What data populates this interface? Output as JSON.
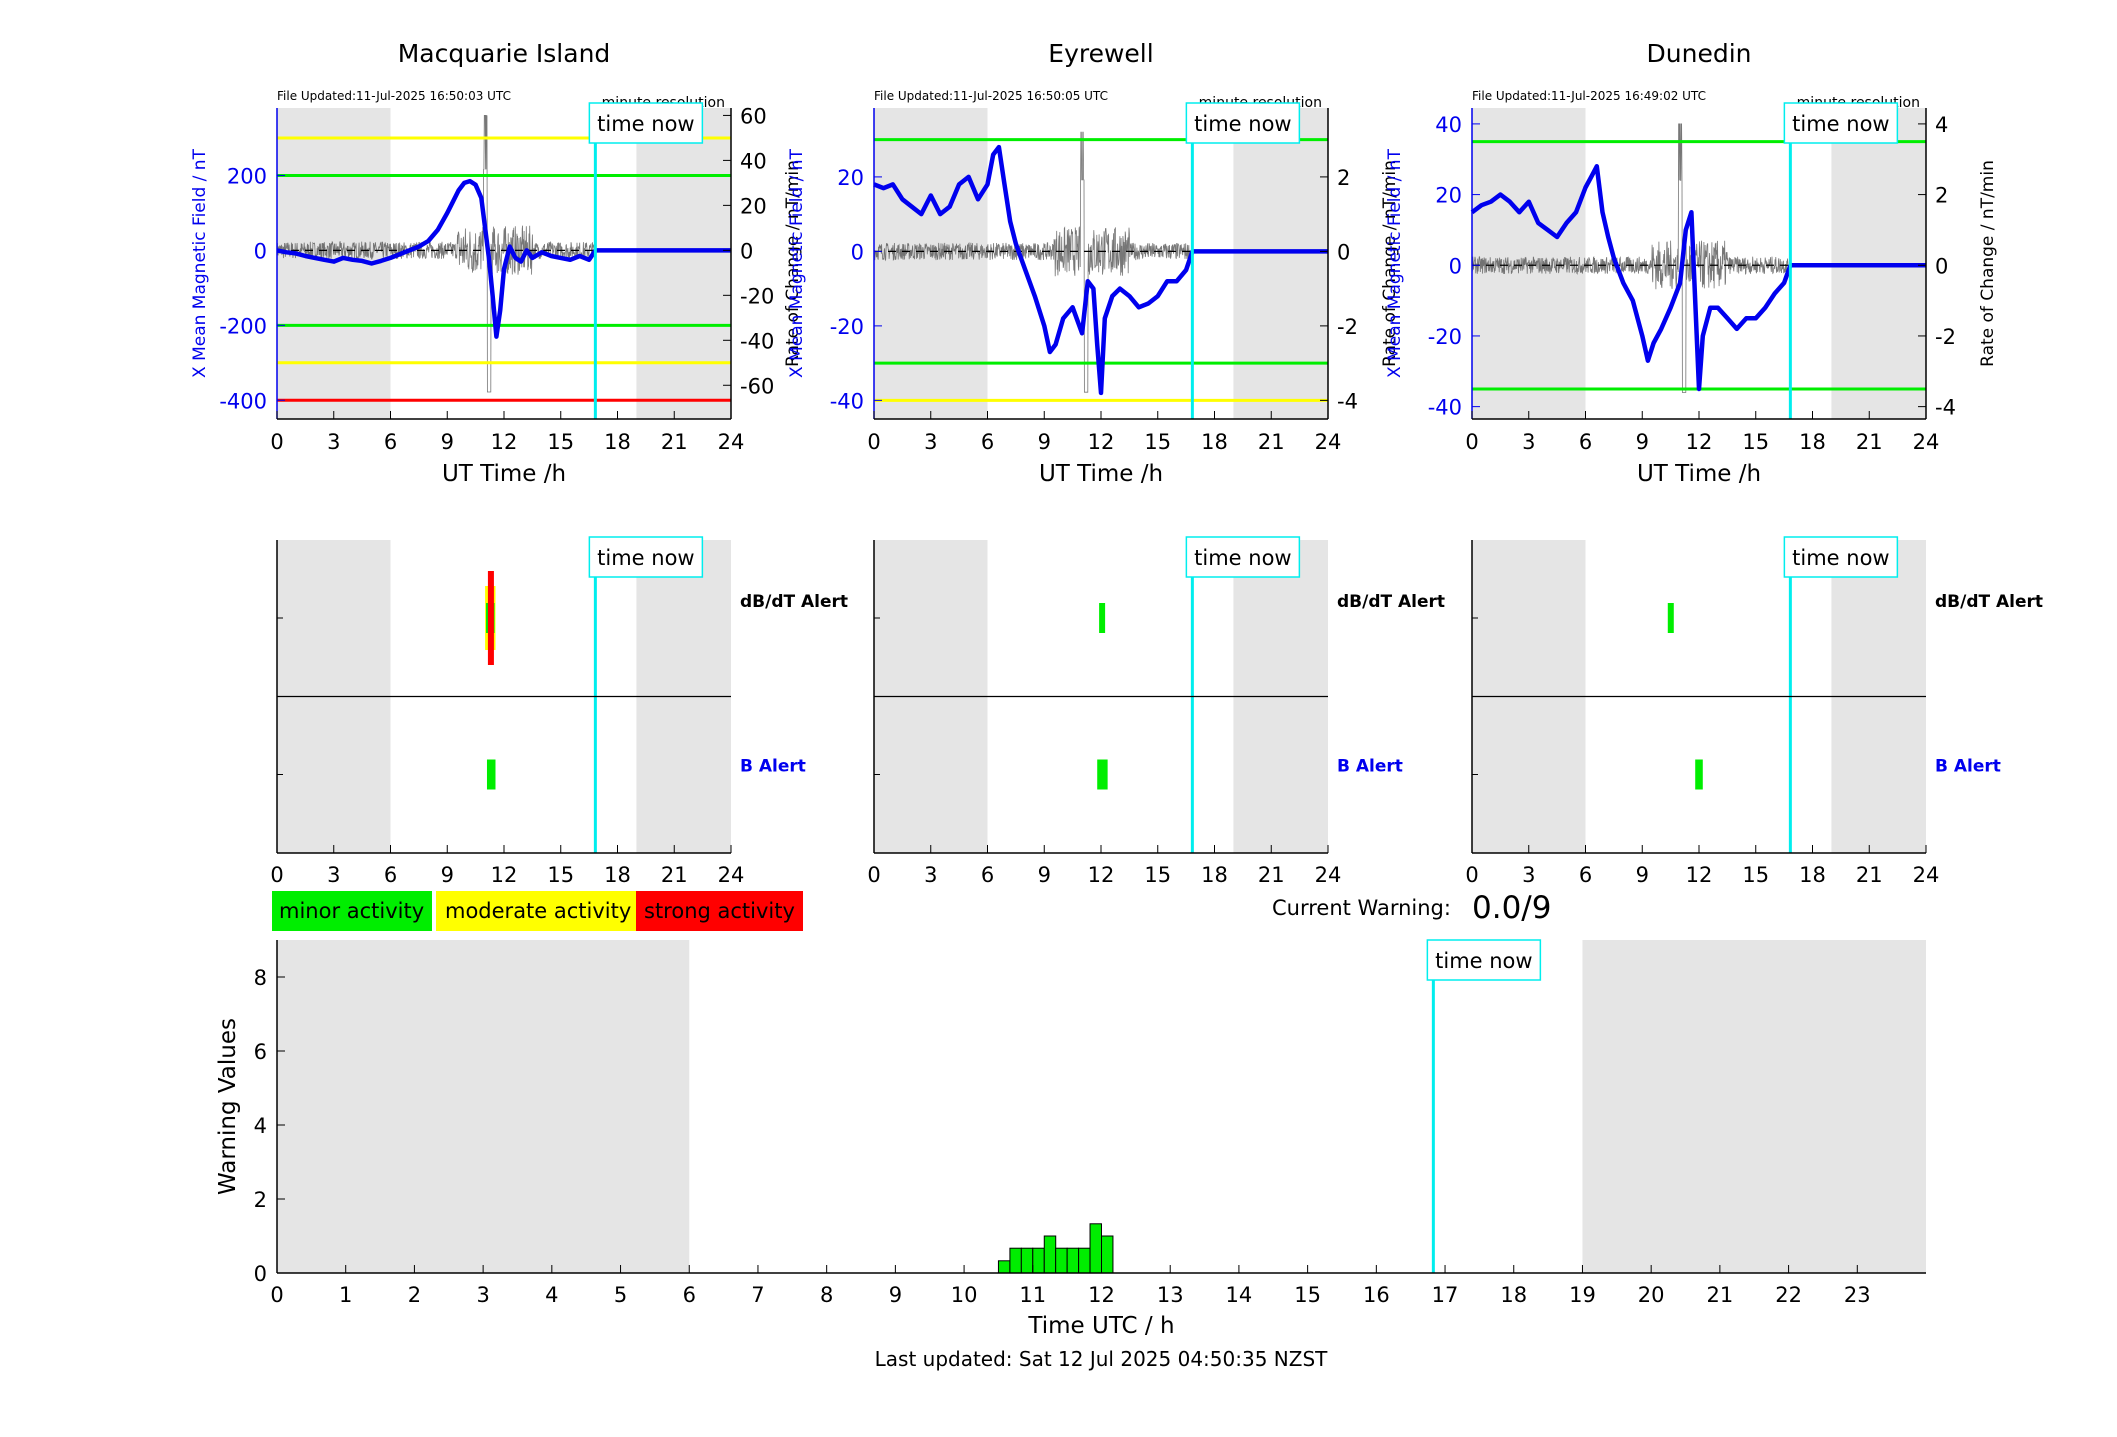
{
  "meta": {
    "last_updated_text": "Last updated: Sat 12 Jul 2025 04:50:35 NZST",
    "current_warning_label": "Current Warning:",
    "current_warning_value": "0.0/9",
    "time_now_label": "time now",
    "minute_resolution_label": "minute resolution",
    "dbdt_alert_label": "dB/dT Alert",
    "b_alert_label": "B Alert",
    "legend": [
      {
        "label": "minor activity",
        "color": "#00ee00"
      },
      {
        "label": "moderate activity",
        "color": "#ffff00"
      },
      {
        "label": "strong activity",
        "color": "#ff0000"
      }
    ],
    "colors": {
      "field_line": "#0000ee",
      "rate_line": "#555555",
      "time_now": "#00eeee",
      "night_shade": "#e5e5e5",
      "green": "#00ee00",
      "yellow": "#ffff00",
      "red": "#ff0000",
      "b_alert_label": "#0000ee"
    }
  },
  "chart_data": [
    {
      "type": "line",
      "title": "Macquarie Island",
      "file_updated": "File Updated:11-Jul-2025 16:50:03 UTC",
      "xlabel": "UT Time /h",
      "ylabel": "X Mean Magnetic Field / nT",
      "ylabel_right": "Rate of Change / nT/min",
      "xlim": [
        0,
        24
      ],
      "xticks": [
        "0",
        "3",
        "6",
        "9",
        "12",
        "15",
        "18",
        "21",
        "24"
      ],
      "ylim": [
        -450,
        380
      ],
      "yticks": [
        "-400",
        "-200",
        "0",
        "200"
      ],
      "ylim_right": [
        -75,
        63.3
      ],
      "yticks_right": [
        "-60",
        "-40",
        "-20",
        "0",
        "20",
        "40",
        "60"
      ],
      "night_shade": [
        [
          0,
          6
        ],
        [
          19,
          24
        ]
      ],
      "time_now": 16.83,
      "thresholds": [
        {
          "value": 300,
          "color": "yellow"
        },
        {
          "value": 200,
          "color": "green"
        },
        {
          "value": -200,
          "color": "green"
        },
        {
          "value": -300,
          "color": "yellow"
        },
        {
          "value": -400,
          "color": "red"
        }
      ],
      "series": [
        {
          "x": [
            0,
            0.5,
            1,
            1.5,
            2,
            2.5,
            3,
            3.5,
            4,
            4.5,
            5,
            5.5,
            6,
            6.5,
            7,
            7.5,
            8,
            8.5,
            9,
            9.3,
            9.6,
            9.9,
            10.2,
            10.5,
            10.8,
            11.0,
            11.2,
            11.4,
            11.6,
            11.8,
            12.0,
            12.3,
            12.6,
            12.9,
            13.2,
            13.5,
            14,
            14.5,
            15,
            15.5,
            16,
            16.5,
            16.83
          ],
          "values": [
            0,
            -5,
            -8,
            -15,
            -20,
            -25,
            -30,
            -20,
            -25,
            -28,
            -35,
            -28,
            -20,
            -10,
            0,
            10,
            25,
            55,
            100,
            130,
            160,
            180,
            185,
            175,
            140,
            60,
            -20,
            -120,
            -230,
            -160,
            -50,
            10,
            -20,
            -30,
            0,
            -20,
            -5,
            -15,
            -20,
            -25,
            -15,
            -25,
            0
          ]
        },
        {
          "x": [
            16.83,
            24
          ],
          "values": [
            0,
            0
          ]
        }
      ],
      "rate_of_change_peaks": {
        "max": 60,
        "min": -70
      }
    },
    {
      "type": "line",
      "title": "Eyrewell",
      "file_updated": "File Updated:11-Jul-2025 16:50:05 UTC",
      "xlabel": "UT Time /h",
      "ylabel": "X Mean Magnetic Field / nT",
      "ylabel_right": "Rate of Change / nT/min",
      "xlim": [
        0,
        24
      ],
      "xticks": [
        "0",
        "3",
        "6",
        "9",
        "12",
        "15",
        "18",
        "21",
        "24"
      ],
      "ylim": [
        -45,
        38.5
      ],
      "yticks": [
        "-40",
        "-20",
        "0",
        "20"
      ],
      "ylim_right": [
        -4.5,
        3.85
      ],
      "yticks_right": [
        "-4",
        "-2",
        "0",
        "2"
      ],
      "night_shade": [
        [
          0,
          6
        ],
        [
          19,
          24
        ]
      ],
      "time_now": 16.83,
      "thresholds": [
        {
          "value": 30,
          "color": "green"
        },
        {
          "value": -30,
          "color": "green"
        },
        {
          "value": -40,
          "color": "yellow"
        }
      ],
      "series": [
        {
          "x": [
            0,
            0.5,
            1,
            1.5,
            2,
            2.5,
            3,
            3.5,
            4,
            4.5,
            5,
            5.5,
            6,
            6.3,
            6.6,
            6.9,
            7.2,
            7.5,
            8,
            8.5,
            9,
            9.3,
            9.6,
            10,
            10.5,
            11,
            11.3,
            11.6,
            11.8,
            12.0,
            12.2,
            12.6,
            13,
            13.5,
            14,
            14.5,
            15,
            15.5,
            16,
            16.5,
            16.83
          ],
          "values": [
            18,
            17,
            18,
            14,
            12,
            10,
            15,
            10,
            12,
            18,
            20,
            14,
            18,
            26,
            28,
            18,
            8,
            2,
            -5,
            -12,
            -20,
            -27,
            -25,
            -18,
            -15,
            -22,
            -8,
            -10,
            -25,
            -38,
            -18,
            -12,
            -10,
            -12,
            -15,
            -14,
            -12,
            -8,
            -8,
            -5,
            0
          ]
        },
        {
          "x": [
            16.83,
            24
          ],
          "values": [
            0,
            0
          ]
        }
      ],
      "rate_of_change_peaks": {
        "max": 3.2,
        "min": -4.2
      }
    },
    {
      "type": "line",
      "title": "Dunedin",
      "file_updated": "File Updated:11-Jul-2025 16:49:02 UTC",
      "xlabel": "UT Time /h",
      "ylabel": "X Mean Magnetic Field / nT",
      "ylabel_right": "Rate of Change / nT/min",
      "xlim": [
        0,
        24
      ],
      "xticks": [
        "0",
        "3",
        "6",
        "9",
        "12",
        "15",
        "18",
        "21",
        "24"
      ],
      "ylim": [
        -43.5,
        44.5
      ],
      "yticks": [
        "-40",
        "-20",
        "0",
        "20",
        "40"
      ],
      "ylim_right": [
        -4.35,
        4.45
      ],
      "yticks_right": [
        "-4",
        "-2",
        "0",
        "2",
        "4"
      ],
      "night_shade": [
        [
          0,
          6
        ],
        [
          19,
          24
        ]
      ],
      "time_now": 16.83,
      "thresholds": [
        {
          "value": 35,
          "color": "green"
        },
        {
          "value": -35,
          "color": "green"
        }
      ],
      "series": [
        {
          "x": [
            0,
            0.5,
            1,
            1.5,
            2,
            2.5,
            3,
            3.5,
            4,
            4.5,
            5,
            5.5,
            6,
            6.3,
            6.6,
            6.9,
            7.2,
            7.5,
            8,
            8.5,
            9,
            9.3,
            9.6,
            10,
            10.5,
            11,
            11.3,
            11.6,
            11.8,
            12.0,
            12.2,
            12.6,
            13,
            13.5,
            14,
            14.5,
            15,
            15.5,
            16,
            16.5,
            16.83
          ],
          "values": [
            15,
            17,
            18,
            20,
            18,
            15,
            18,
            12,
            10,
            8,
            12,
            15,
            22,
            25,
            28,
            15,
            8,
            2,
            -5,
            -10,
            -20,
            -27,
            -22,
            -18,
            -12,
            -5,
            10,
            15,
            -10,
            -35,
            -20,
            -12,
            -12,
            -15,
            -18,
            -15,
            -15,
            -12,
            -8,
            -5,
            0
          ]
        },
        {
          "x": [
            16.83,
            24
          ],
          "values": [
            0,
            0
          ]
        }
      ],
      "rate_of_change_peaks": {
        "max": 4,
        "min": -4
      }
    },
    {
      "type": "bar",
      "title": "",
      "xlabel": "",
      "ylabel": "",
      "xlim": [
        0,
        24
      ],
      "xticks": [
        "0",
        "3",
        "6",
        "9",
        "12",
        "15",
        "18",
        "21",
        "24"
      ],
      "night_shade": [
        [
          0,
          6
        ],
        [
          19,
          24
        ]
      ],
      "time_now": 16.83,
      "rows": [
        "dB/dT Alert",
        "B Alert"
      ],
      "alerts": {
        "dbdt": [
          {
            "start": 11.0,
            "end": 11.55,
            "level": "moderate"
          },
          {
            "start": 11.05,
            "end": 11.5,
            "level": "minor"
          },
          {
            "start": 11.15,
            "end": 11.4,
            "level": "strong"
          }
        ],
        "b": [
          {
            "start": 11.1,
            "end": 11.55,
            "level": "minor"
          }
        ]
      }
    },
    {
      "type": "bar",
      "title": "",
      "xlabel": "",
      "ylabel": "",
      "xlim": [
        0,
        24
      ],
      "xticks": [
        "0",
        "3",
        "6",
        "9",
        "12",
        "15",
        "18",
        "21",
        "24"
      ],
      "night_shade": [
        [
          0,
          6
        ],
        [
          19,
          24
        ]
      ],
      "time_now": 16.83,
      "rows": [
        "dB/dT Alert",
        "B Alert"
      ],
      "alerts": {
        "dbdt": [
          {
            "start": 11.9,
            "end": 12.2,
            "level": "minor"
          }
        ],
        "b": [
          {
            "start": 11.8,
            "end": 12.35,
            "level": "minor"
          }
        ]
      }
    },
    {
      "type": "bar",
      "title": "",
      "xlabel": "",
      "ylabel": "",
      "xlim": [
        0,
        24
      ],
      "xticks": [
        "0",
        "3",
        "6",
        "9",
        "12",
        "15",
        "18",
        "21",
        "24"
      ],
      "night_shade": [
        [
          0,
          6
        ],
        [
          19,
          24
        ]
      ],
      "time_now": 16.83,
      "rows": [
        "dB/dT Alert",
        "B Alert"
      ],
      "alerts": {
        "dbdt": [
          {
            "start": 10.35,
            "end": 10.65,
            "level": "minor"
          }
        ],
        "b": [
          {
            "start": 11.8,
            "end": 12.2,
            "level": "minor"
          }
        ]
      }
    },
    {
      "type": "bar",
      "title": "",
      "xlabel": "Time UTC / h",
      "ylabel": "Warning Values",
      "xlim": [
        0,
        24
      ],
      "xticks": [
        "0",
        "1",
        "2",
        "3",
        "4",
        "5",
        "6",
        "7",
        "8",
        "9",
        "10",
        "11",
        "12",
        "13",
        "14",
        "15",
        "16",
        "17",
        "18",
        "19",
        "20",
        "21",
        "22",
        "23"
      ],
      "ylim": [
        0,
        9
      ],
      "yticks": [
        "0",
        "2",
        "4",
        "6",
        "8"
      ],
      "night_shade": [
        [
          0,
          6
        ],
        [
          19,
          24
        ]
      ],
      "time_now": 16.83,
      "bin_width_h": 0.1667,
      "x": [
        10.5,
        10.667,
        10.833,
        11.0,
        11.167,
        11.333,
        11.5,
        11.667,
        11.833,
        12.0
      ],
      "values": [
        0.33,
        0.67,
        0.67,
        0.67,
        1.0,
        0.67,
        0.67,
        0.67,
        1.33,
        1.0
      ]
    }
  ]
}
